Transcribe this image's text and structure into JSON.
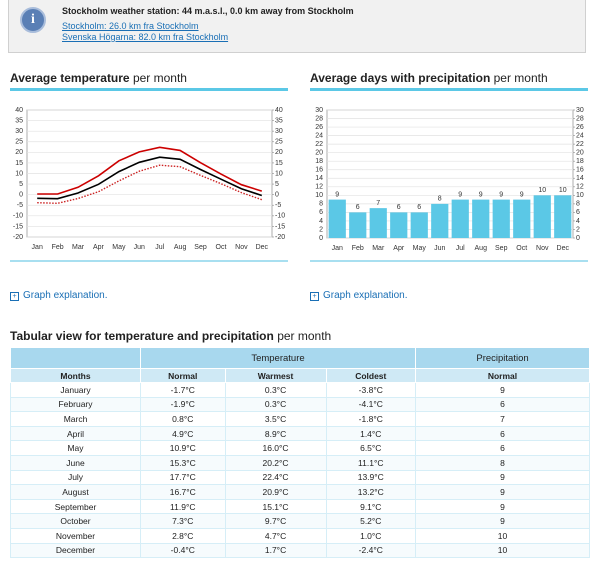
{
  "info": {
    "title": "Stockholm weather station: 44 m.a.s.l., 0.0 km away from Stockholm",
    "links": [
      "Stockholm: 26.0 km fra Stockholm",
      "Svenska Högarna: 82.0 km fra Stockholm"
    ]
  },
  "chart_data": [
    {
      "type": "line",
      "title": "Average temperature",
      "title_suffix": "per month",
      "categories": [
        "Jan",
        "Feb",
        "Mar",
        "Apr",
        "May",
        "Jun",
        "Jul",
        "Aug",
        "Sep",
        "Oct",
        "Nov",
        "Dec"
      ],
      "series": [
        {
          "name": "Warmest",
          "color": "#cc0000",
          "dash": false,
          "values": [
            0.3,
            0.3,
            3.5,
            8.9,
            16.0,
            20.2,
            22.4,
            20.9,
            15.1,
            9.7,
            4.7,
            1.7
          ]
        },
        {
          "name": "Normal",
          "color": "#000000",
          "dash": false,
          "values": [
            -1.7,
            -1.9,
            0.8,
            4.9,
            10.9,
            15.3,
            17.7,
            16.7,
            11.9,
            7.3,
            2.8,
            -0.4
          ]
        },
        {
          "name": "Coldest",
          "color": "#cc2222",
          "dash": true,
          "values": [
            -3.8,
            -4.1,
            -1.8,
            1.4,
            6.5,
            11.1,
            13.9,
            13.2,
            9.1,
            5.2,
            1.0,
            -2.4
          ]
        }
      ],
      "ylim": [
        -20,
        40
      ],
      "yticks": [
        -20,
        -15,
        -10,
        -5,
        0,
        5,
        10,
        15,
        20,
        25,
        30,
        35,
        40
      ],
      "y2lim": [
        -20,
        40
      ],
      "y2ticks": [
        -20,
        -15,
        -10,
        -5,
        0,
        5,
        10,
        15,
        20,
        25,
        30,
        35,
        40
      ],
      "grid": true
    },
    {
      "type": "bar",
      "title": "Average days with precipitation",
      "title_suffix": "per month",
      "categories": [
        "Jan",
        "Feb",
        "Mar",
        "Apr",
        "May",
        "Jun",
        "Jul",
        "Aug",
        "Sep",
        "Oct",
        "Nov",
        "Dec"
      ],
      "values": [
        9,
        6,
        7,
        6,
        6,
        8,
        9,
        9,
        9,
        9,
        10,
        10
      ],
      "color": "#5bc8e6",
      "ylim": [
        0,
        30
      ],
      "yticks": [
        0,
        2,
        4,
        6,
        8,
        10,
        12,
        14,
        16,
        18,
        20,
        22,
        24,
        26,
        28,
        30
      ],
      "y2lim": [
        0,
        30
      ],
      "y2ticks": [
        0,
        2,
        4,
        6,
        8,
        10,
        12,
        14,
        16,
        18,
        20,
        22,
        24,
        26,
        28,
        30
      ],
      "grid": true
    }
  ],
  "graph_explanation": [
    "Graph explanation.",
    "Graph explanation."
  ],
  "table": {
    "title": "Tabular view for temperature and precipitation",
    "title_suffix": "per month",
    "group_headers": [
      "Temperature",
      "Precipitation"
    ],
    "headers": [
      "Months",
      "Normal",
      "Warmest",
      "Coldest",
      "Normal"
    ],
    "rows": [
      [
        "January",
        "-1.7°C",
        "0.3°C",
        "-3.8°C",
        "9"
      ],
      [
        "February",
        "-1.9°C",
        "0.3°C",
        "-4.1°C",
        "6"
      ],
      [
        "March",
        "0.8°C",
        "3.5°C",
        "-1.8°C",
        "7"
      ],
      [
        "April",
        "4.9°C",
        "8.9°C",
        "1.4°C",
        "6"
      ],
      [
        "May",
        "10.9°C",
        "16.0°C",
        "6.5°C",
        "6"
      ],
      [
        "June",
        "15.3°C",
        "20.2°C",
        "11.1°C",
        "8"
      ],
      [
        "July",
        "17.7°C",
        "22.4°C",
        "13.9°C",
        "9"
      ],
      [
        "August",
        "16.7°C",
        "20.9°C",
        "13.2°C",
        "9"
      ],
      [
        "September",
        "11.9°C",
        "15.1°C",
        "9.1°C",
        "9"
      ],
      [
        "October",
        "7.3°C",
        "9.7°C",
        "5.2°C",
        "9"
      ],
      [
        "November",
        "2.8°C",
        "4.7°C",
        "1.0°C",
        "10"
      ],
      [
        "December",
        "-0.4°C",
        "1.7°C",
        "-2.4°C",
        "10"
      ]
    ]
  }
}
